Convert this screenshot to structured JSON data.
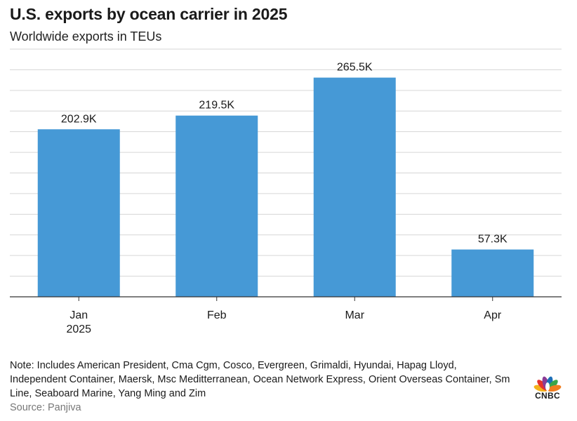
{
  "header": {
    "title": "U.S. exports by ocean carrier in 2025",
    "subtitle": "Worldwide exports in TEUs"
  },
  "chart_data": {
    "type": "bar",
    "categories": [
      "Jan",
      "Feb",
      "Mar",
      "Apr"
    ],
    "category_sublabels": [
      "2025",
      "",
      "",
      ""
    ],
    "values": [
      202900,
      219500,
      265500,
      57300
    ],
    "data_labels": [
      "202.9K",
      "219.5K",
      "265.5K",
      "57.3K"
    ],
    "ylim": [
      0,
      300000
    ],
    "grid": true,
    "bar_color": "#4699d6"
  },
  "footer": {
    "note": "Note: Includes American President, Cma Cgm, Cosco, Evergreen, Grimaldi, Hyundai, Hapag Lloyd, Independent Container, Maersk, Msc Meditterranean, Ocean Network Express, Orient Overseas Container, Sm Line, Seaboard Marine, Yang Ming and Zim",
    "source": "Source: Panjiva",
    "logo_text": "CNBC"
  }
}
